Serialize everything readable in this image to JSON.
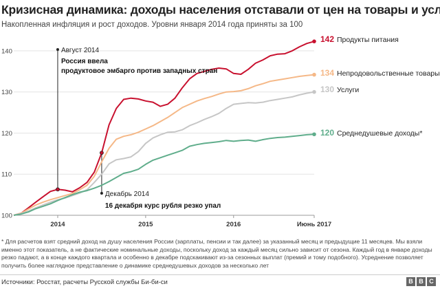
{
  "title": "Кризисная динамика: доходы населения отставали от цен на товары и услуги",
  "subtitle": "Накопленная инфляция и рост доходов. Уровни января 2014 года приняты за 100",
  "footnote": "* Для расчетов взят средний доход на душу населения России (зарплаты, пенсии и так далее) за указанный месяц и предыдущие 11 месяцев. Мы взяли именно этот показатель, а не фактические номинальные доходы, поскольку доход за каждый месяц сильно зависит от сезона. Каждый год в январе доходы резко падают, а в конце каждого квартала и особенно в декабре подскакивают из-за сезонных выплат (премий и тому подобного). Усреднение позволяет получить более наглядное представление о динамике среднедушевых доходов за несколько лет",
  "source": "Источники: Росстат, расчеты Русской службы Би-би-си",
  "logo": [
    "B",
    "B",
    "C"
  ],
  "chart_data": {
    "type": "line",
    "title": "Кризисная динамика: доходы населения отставали от цен на товары и услуги",
    "xlabel": "",
    "ylabel": "",
    "x_tick_labels": [
      "2014",
      "2015",
      "2016",
      "Июнь 2017"
    ],
    "x_tick_months": [
      6,
      18,
      30,
      41
    ],
    "y_ticks": [
      100,
      110,
      120,
      130,
      140
    ],
    "ylim": [
      100,
      143
    ],
    "xlim": [
      0,
      41
    ],
    "grid": true,
    "series": [
      {
        "name": "Продукты питания",
        "color": "#c8102e",
        "end_value": "142",
        "values": [
          100,
          100.5,
          101.8,
          103.2,
          104.5,
          105.8,
          106.3,
          106.1,
          105.7,
          106.7,
          108.0,
          110.5,
          115.2,
          122.0,
          126.0,
          128.2,
          128.5,
          128.3,
          127.8,
          127.5,
          126.5,
          127.0,
          128.5,
          131.0,
          133.2,
          134.5,
          135.0,
          135.5,
          135.8,
          135.6,
          134.5,
          134.3,
          135.5,
          137.0,
          137.8,
          138.8,
          139.2,
          139.3,
          140.0,
          141.0,
          141.8,
          142.3
        ]
      },
      {
        "name": "Непродовольственные товары",
        "color": "#f5b887",
        "end_value": "134",
        "values": [
          100,
          100.5,
          101.5,
          102.5,
          103.2,
          103.8,
          104.3,
          104.8,
          105.3,
          106.2,
          107.3,
          109.5,
          113.0,
          116.3,
          118.5,
          119.2,
          119.6,
          120.2,
          121.0,
          121.8,
          122.8,
          123.8,
          125.0,
          126.2,
          127.0,
          127.8,
          128.4,
          128.9,
          129.5,
          130.0,
          130.1,
          130.3,
          130.8,
          131.5,
          132.0,
          132.6,
          132.9,
          133.2,
          133.5,
          133.8,
          134.0,
          134.2
        ]
      },
      {
        "name": "Услуги",
        "color": "#c6c6c6",
        "end_value": "130",
        "values": [
          100,
          100.4,
          101.0,
          101.8,
          102.5,
          103.2,
          103.8,
          104.2,
          104.8,
          105.4,
          106.2,
          108.0,
          110.0,
          112.5,
          113.5,
          113.8,
          114.2,
          115.5,
          117.5,
          118.8,
          119.6,
          120.2,
          120.3,
          120.8,
          121.8,
          122.5,
          123.3,
          124.0,
          124.8,
          126.0,
          127.0,
          127.2,
          127.4,
          127.3,
          127.5,
          127.9,
          128.2,
          128.5,
          128.8,
          129.3,
          129.7,
          130.0
        ]
      },
      {
        "name": "Среднедушевые доходы*",
        "color": "#5fad8b",
        "end_value": "120",
        "values": [
          100,
          100.3,
          100.8,
          101.6,
          102.2,
          102.8,
          103.6,
          104.3,
          105.0,
          105.6,
          106.0,
          106.6,
          107.3,
          108.2,
          109.2,
          110.2,
          110.6,
          111.2,
          112.4,
          113.4,
          114.0,
          114.6,
          115.2,
          115.8,
          116.8,
          117.2,
          117.5,
          117.7,
          117.9,
          118.2,
          118.0,
          118.2,
          118.3,
          118.0,
          118.4,
          118.7,
          118.9,
          119.0,
          119.2,
          119.4,
          119.6,
          119.7
        ]
      }
    ],
    "annotations": [
      {
        "month": 6,
        "date": "Август 2014",
        "text": "Россия ввела продуктовое эмбарго против западных стран"
      },
      {
        "month": 12,
        "date": "Декабрь 2014",
        "text": "16 декабря курс рубля резко упал"
      }
    ]
  }
}
